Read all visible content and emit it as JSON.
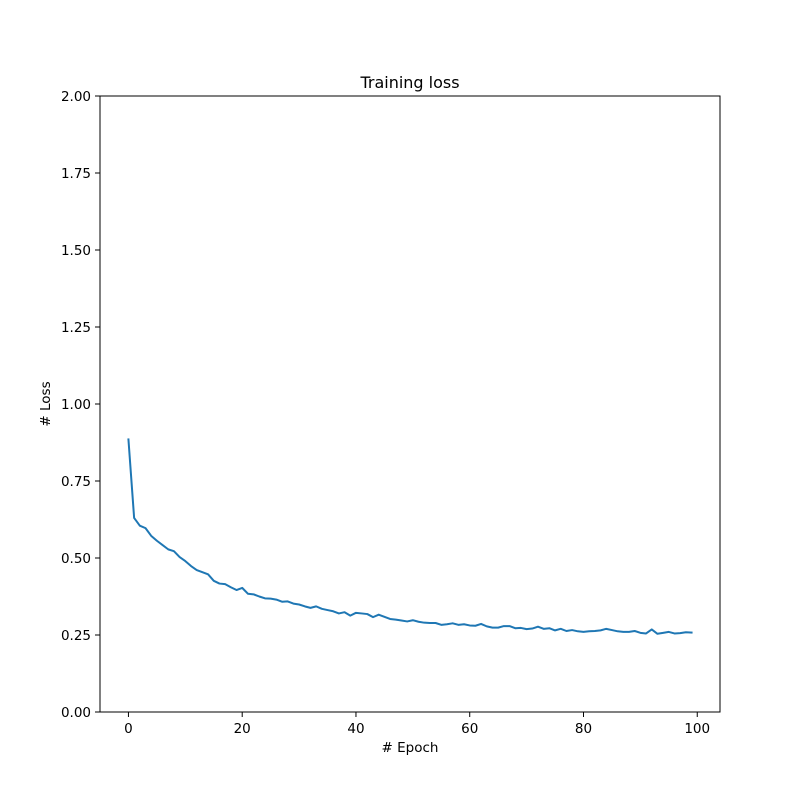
{
  "chart_data": {
    "type": "line",
    "title": "Training loss",
    "xlabel": "# Epoch",
    "ylabel": "# Loss",
    "xlim": [
      -5,
      104
    ],
    "ylim": [
      0,
      2
    ],
    "xticks": [
      0,
      20,
      40,
      60,
      80,
      100
    ],
    "xtick_labels": [
      "0",
      "20",
      "40",
      "60",
      "80",
      "100"
    ],
    "yticks": [
      0,
      0.25,
      0.5,
      0.75,
      1.0,
      1.25,
      1.5,
      1.75,
      2.0
    ],
    "ytick_labels": [
      "0.00",
      "0.25",
      "0.50",
      "0.75",
      "1.00",
      "1.25",
      "1.50",
      "1.75",
      "2.00"
    ],
    "grid": false,
    "series": [
      {
        "color": "#1f77b4",
        "x": [
          0,
          1,
          2,
          3,
          4,
          5,
          6,
          7,
          8,
          9,
          10,
          11,
          12,
          13,
          14,
          15,
          16,
          17,
          18,
          19,
          20,
          21,
          22,
          23,
          24,
          25,
          26,
          27,
          28,
          29,
          30,
          31,
          32,
          33,
          34,
          35,
          36,
          37,
          38,
          39,
          40,
          41,
          42,
          43,
          44,
          45,
          46,
          47,
          48,
          49,
          50,
          51,
          52,
          53,
          54,
          55,
          56,
          57,
          58,
          59,
          60,
          61,
          62,
          63,
          64,
          65,
          66,
          67,
          68,
          69,
          70,
          71,
          72,
          73,
          74,
          75,
          76,
          77,
          78,
          79,
          80,
          81,
          82,
          83,
          84,
          85,
          86,
          87,
          88,
          89,
          90,
          91,
          92,
          93,
          94,
          95,
          96,
          97,
          98,
          99
        ],
        "values": [
          0.885,
          0.63,
          0.605,
          0.597,
          0.572,
          0.556,
          0.542,
          0.528,
          0.522,
          0.503,
          0.49,
          0.474,
          0.461,
          0.454,
          0.447,
          0.426,
          0.417,
          0.415,
          0.405,
          0.396,
          0.403,
          0.384,
          0.382,
          0.375,
          0.369,
          0.368,
          0.365,
          0.358,
          0.359,
          0.352,
          0.349,
          0.343,
          0.338,
          0.343,
          0.335,
          0.331,
          0.327,
          0.32,
          0.324,
          0.313,
          0.322,
          0.32,
          0.318,
          0.308,
          0.316,
          0.309,
          0.302,
          0.3,
          0.297,
          0.294,
          0.298,
          0.293,
          0.29,
          0.289,
          0.289,
          0.283,
          0.285,
          0.288,
          0.283,
          0.285,
          0.281,
          0.28,
          0.286,
          0.278,
          0.274,
          0.274,
          0.279,
          0.279,
          0.272,
          0.273,
          0.269,
          0.271,
          0.277,
          0.27,
          0.272,
          0.265,
          0.27,
          0.263,
          0.266,
          0.262,
          0.26,
          0.262,
          0.263,
          0.265,
          0.27,
          0.266,
          0.262,
          0.26,
          0.26,
          0.263,
          0.257,
          0.255,
          0.268,
          0.254,
          0.257,
          0.26,
          0.255,
          0.256,
          0.259,
          0.258
        ]
      }
    ]
  }
}
